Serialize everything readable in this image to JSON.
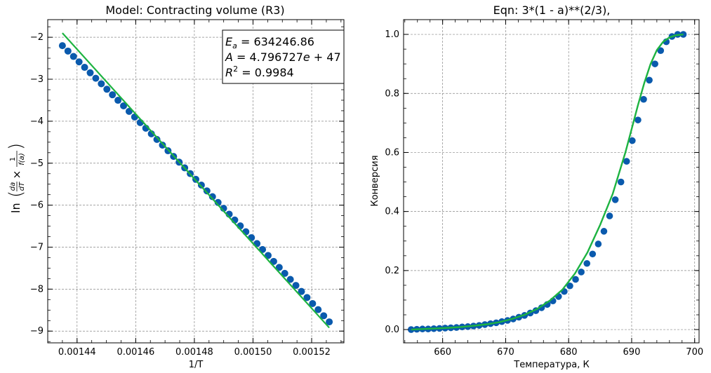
{
  "chart_data": [
    {
      "type": "scatter",
      "title": "Model: Contracting volume (R3)",
      "xlabel": "1/T",
      "ylabel_text": "ln(da/dT × 1/f(a))",
      "xlim": [
        0.00143,
        0.001531
      ],
      "ylim": [
        -9.28,
        -1.58
      ],
      "xticks": [
        0.00144,
        0.00146,
        0.00148,
        0.0015,
        0.00152
      ],
      "xtick_labels": [
        "0.00144",
        "0.00146",
        "0.00148",
        "0.00150",
        "0.00152"
      ],
      "yticks": [
        -2,
        -3,
        -4,
        -5,
        -6,
        -7,
        -8,
        -9
      ],
      "ytick_labels": [
        "−2",
        "−3",
        "−4",
        "−5",
        "−6",
        "−7",
        "−8",
        "−9"
      ],
      "grid": true,
      "colors": {
        "points": "#0a5aad",
        "fit": "#1db341"
      },
      "series": [
        {
          "kind": "points",
          "x_start": 0.001435,
          "x_end": 0.001526,
          "y_start": -2.2,
          "y_end": -8.78,
          "count": 49,
          "curvature": -0.35
        },
        {
          "kind": "fit-line",
          "x": [
            0.001435,
            0.001526
          ],
          "y": [
            -1.9,
            -8.92
          ]
        }
      ],
      "annotation": {
        "ea_label": "E",
        "ea_sub": "a",
        "ea_value": " = 634246.86",
        "a_label": "A",
        "a_value": " = 4.796727",
        "a_e": "e",
        "a_exp": " + 47",
        "r_label": "R",
        "r_sup": "2",
        "r_value": " = 0.9984"
      }
    },
    {
      "type": "scatter",
      "title": "Eqn: 3*(1 - a)**(2/3),",
      "xlabel": "Температура, К",
      "ylabel": "Конверсия",
      "xlim": [
        653.8,
        700.7
      ],
      "ylim": [
        -0.045,
        1.05
      ],
      "xticks": [
        660,
        670,
        680,
        690,
        700
      ],
      "xtick_labels": [
        "660",
        "670",
        "680",
        "690",
        "700"
      ],
      "yticks": [
        0.0,
        0.2,
        0.4,
        0.6,
        0.8,
        1.0
      ],
      "ytick_labels": [
        "0.0",
        "0.2",
        "0.4",
        "0.6",
        "0.8",
        "1.0"
      ],
      "grid": true,
      "colors": {
        "points": "#0a5aad",
        "fit": "#1db341"
      },
      "points": {
        "x": [
          655.0,
          655.9,
          656.8,
          657.7,
          658.6,
          659.5,
          660.4,
          661.3,
          662.2,
          663.1,
          664.0,
          664.9,
          665.8,
          666.7,
          667.6,
          668.5,
          669.4,
          670.3,
          671.2,
          672.1,
          673.0,
          673.9,
          674.8,
          675.7,
          676.6,
          677.5,
          678.4,
          679.3,
          680.2,
          681.1,
          682.0,
          682.9,
          683.8,
          684.7,
          685.6,
          686.5,
          687.4,
          688.3,
          689.2,
          690.1,
          691.0,
          691.9,
          692.8,
          693.7,
          694.6,
          695.5,
          696.4,
          697.3,
          698.2
        ],
        "y": [
          0.0,
          0.001,
          0.002,
          0.002,
          0.003,
          0.004,
          0.005,
          0.006,
          0.007,
          0.009,
          0.01,
          0.012,
          0.014,
          0.017,
          0.02,
          0.023,
          0.027,
          0.031,
          0.036,
          0.042,
          0.048,
          0.056,
          0.064,
          0.074,
          0.085,
          0.097,
          0.112,
          0.129,
          0.148,
          0.17,
          0.195,
          0.224,
          0.256,
          0.29,
          0.333,
          0.385,
          0.44,
          0.5,
          0.57,
          0.64,
          0.71,
          0.78,
          0.845,
          0.9,
          0.945,
          0.975,
          0.993,
          1.0,
          1.0
        ]
      },
      "fit": {
        "x": [
          655.0,
          657.0,
          659.0,
          661.0,
          663.0,
          665.0,
          667.0,
          669.0,
          671.0,
          673.0,
          675.0,
          677.0,
          679.0,
          681.0,
          683.0,
          685.0,
          687.0,
          689.0,
          690.0,
          691.0,
          692.0,
          693.0,
          694.0,
          695.0,
          696.0,
          697.0,
          698.2
        ],
        "y": [
          0.0,
          0.002,
          0.004,
          0.006,
          0.009,
          0.013,
          0.018,
          0.025,
          0.036,
          0.05,
          0.07,
          0.098,
          0.135,
          0.19,
          0.262,
          0.355,
          0.46,
          0.6,
          0.68,
          0.76,
          0.835,
          0.9,
          0.947,
          0.975,
          0.99,
          0.997,
          1.0
        ]
      }
    }
  ]
}
